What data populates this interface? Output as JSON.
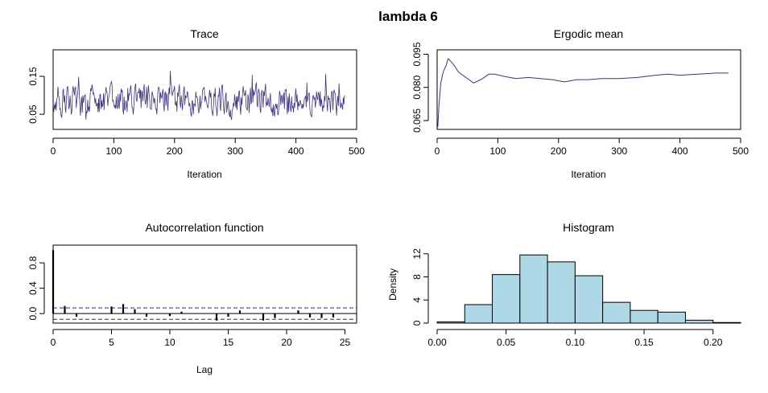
{
  "main_title": "lambda 6",
  "colors": {
    "trace_line": "#3b3486",
    "acf_ci_line": "#1f2a9e",
    "hist_fill": "#add8e6",
    "frame": "#000000"
  },
  "chart_data": [
    {
      "id": "trace",
      "type": "line",
      "title": "Trace",
      "xlabel": "Iteration",
      "ylabel": "",
      "xlim": [
        0,
        500
      ],
      "ylim": [
        0.01,
        0.22
      ],
      "xticks": [
        0,
        100,
        200,
        300,
        400,
        500
      ],
      "yticks": [
        0.05,
        0.15
      ],
      "ytick_labels": [
        "0.05",
        "0.15"
      ],
      "x": [
        1,
        480
      ],
      "y_mean": 0.086,
      "y_range": [
        0.02,
        0.2
      ]
    },
    {
      "id": "ergodic",
      "type": "line",
      "title": "Ergodic mean",
      "xlabel": "Iteration",
      "ylabel": "",
      "xlim": [
        0,
        500
      ],
      "ylim": [
        0.061,
        0.097
      ],
      "xticks": [
        0,
        100,
        200,
        300,
        400,
        500
      ],
      "yticks": [
        0.065,
        0.08,
        0.095
      ],
      "ytick_labels": [
        "0.065",
        "0.080",
        "0.095"
      ],
      "x": [
        1,
        3,
        6,
        10,
        15,
        18,
        22,
        28,
        35,
        45,
        55,
        60,
        68,
        75,
        85,
        95,
        110,
        130,
        150,
        170,
        190,
        210,
        230,
        250,
        270,
        300,
        330,
        360,
        380,
        400,
        430,
        460,
        480
      ],
      "y": [
        0.062,
        0.072,
        0.082,
        0.087,
        0.09,
        0.093,
        0.092,
        0.09,
        0.087,
        0.085,
        0.083,
        0.082,
        0.083,
        0.084,
        0.086,
        0.086,
        0.085,
        0.084,
        0.0845,
        0.084,
        0.0835,
        0.0825,
        0.0835,
        0.0835,
        0.084,
        0.084,
        0.0845,
        0.0855,
        0.086,
        0.0855,
        0.086,
        0.0865,
        0.0865
      ]
    },
    {
      "id": "acf",
      "type": "bar",
      "title": "Autocorrelation function",
      "xlabel": "Lag",
      "ylabel": "",
      "xlim": [
        0,
        26
      ],
      "ylim": [
        -0.15,
        1.08
      ],
      "xticks": [
        0,
        5,
        10,
        15,
        20,
        25
      ],
      "yticks": [
        0.0,
        0.4,
        0.8
      ],
      "ytick_labels": [
        "0.0",
        "0.4",
        "0.8"
      ],
      "ci": [
        -0.09,
        0.09
      ],
      "lags": [
        0,
        1,
        2,
        3,
        4,
        5,
        6,
        7,
        8,
        9,
        10,
        11,
        12,
        13,
        14,
        15,
        16,
        17,
        18,
        19,
        20,
        21,
        22,
        23,
        24
      ],
      "values": [
        1.0,
        0.12,
        -0.05,
        0.0,
        0.0,
        0.11,
        0.15,
        0.07,
        -0.05,
        0.0,
        -0.04,
        0.03,
        0.0,
        0.0,
        -0.11,
        -0.05,
        0.05,
        0.0,
        -0.11,
        -0.07,
        0.0,
        0.05,
        -0.06,
        -0.07,
        -0.06
      ]
    },
    {
      "id": "histogram",
      "type": "bar",
      "title": "Histogram",
      "xlabel": "",
      "ylabel": "Density",
      "xlim": [
        0,
        0.22
      ],
      "ylim": [
        0,
        13.5
      ],
      "xticks": [
        0.0,
        0.05,
        0.1,
        0.15,
        0.2
      ],
      "xtick_labels": [
        "0.00",
        "0.05",
        "0.10",
        "0.15",
        "0.20"
      ],
      "yticks": [
        0,
        4,
        8,
        12
      ],
      "ytick_labels": [
        "0",
        "4",
        "8",
        "12"
      ],
      "bin_edges": [
        0.0,
        0.02,
        0.04,
        0.06,
        0.08,
        0.1,
        0.12,
        0.14,
        0.16,
        0.18,
        0.2,
        0.22
      ],
      "values": [
        0.2,
        3.2,
        8.4,
        11.8,
        10.6,
        8.2,
        3.6,
        2.2,
        1.9,
        0.5,
        0.1
      ]
    }
  ]
}
